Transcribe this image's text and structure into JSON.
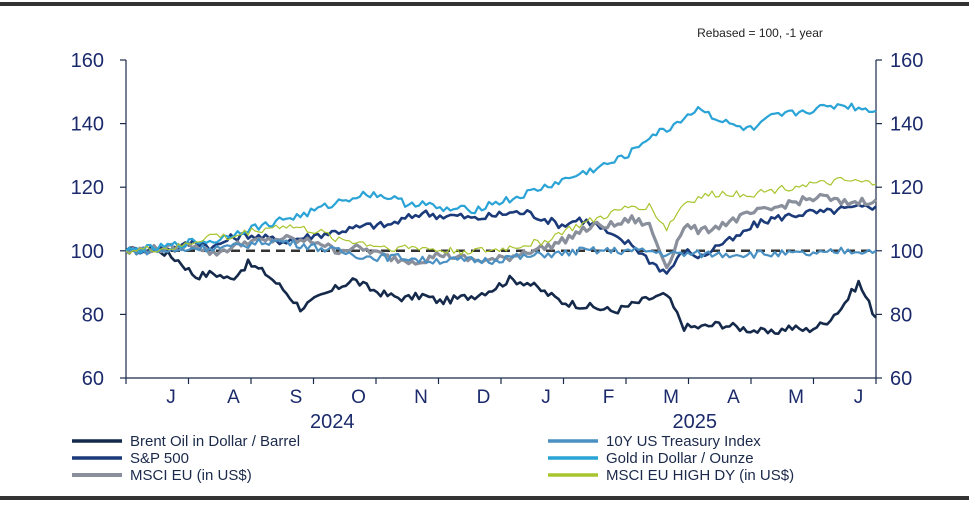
{
  "chart_data": {
    "type": "line",
    "note": "Rebased = 100,  -1 year",
    "y_ticks": [
      "60",
      "80",
      "100",
      "120",
      "140",
      "160"
    ],
    "ylim": [
      60,
      160
    ],
    "x_months": [
      "J",
      "A",
      "S",
      "O",
      "N",
      "D",
      "J",
      "F",
      "M",
      "A",
      "M",
      "J"
    ],
    "x_years": [
      {
        "label": "2024"
      },
      {
        "label": "2025"
      }
    ],
    "reference_line": 100,
    "series": [
      {
        "name": "Brent Oil in Dollar / Barrel",
        "color": "#15294b",
        "values": [
          [
            0,
            100
          ],
          [
            2,
            100
          ],
          [
            3,
            97
          ],
          [
            4,
            92
          ],
          [
            5,
            93
          ],
          [
            6,
            91
          ],
          [
            7,
            96
          ],
          [
            8,
            93
          ],
          [
            9,
            88
          ],
          [
            10,
            82
          ],
          [
            11,
            85
          ],
          [
            12,
            88
          ],
          [
            13,
            91
          ],
          [
            14,
            88
          ],
          [
            15,
            86
          ],
          [
            16,
            85
          ],
          [
            17,
            86
          ],
          [
            18,
            84
          ],
          [
            19,
            85
          ],
          [
            20,
            86
          ],
          [
            21,
            88
          ],
          [
            22,
            91
          ],
          [
            23,
            90
          ],
          [
            24,
            87
          ],
          [
            25,
            84
          ],
          [
            26,
            83
          ],
          [
            27,
            82
          ],
          [
            28,
            81
          ],
          [
            29,
            83
          ],
          [
            30,
            85
          ],
          [
            31,
            86
          ],
          [
            32,
            76
          ],
          [
            33,
            76
          ],
          [
            34,
            77
          ],
          [
            35,
            76
          ],
          [
            36,
            75
          ],
          [
            37,
            74
          ],
          [
            38,
            76
          ],
          [
            39,
            75
          ],
          [
            40,
            77
          ],
          [
            41,
            82
          ],
          [
            42,
            90
          ],
          [
            43,
            79
          ]
        ]
      },
      {
        "name": "S&P 500",
        "color": "#1b3a7a",
        "values": [
          [
            0,
            100
          ],
          [
            3,
            101
          ],
          [
            4,
            103
          ],
          [
            5,
            101
          ],
          [
            6,
            104
          ],
          [
            7,
            105
          ],
          [
            8,
            104
          ],
          [
            9,
            103
          ],
          [
            10,
            104
          ],
          [
            11,
            105
          ],
          [
            12,
            106
          ],
          [
            13,
            107
          ],
          [
            14,
            108
          ],
          [
            15,
            108
          ],
          [
            16,
            110
          ],
          [
            17,
            112
          ],
          [
            18,
            111
          ],
          [
            19,
            111
          ],
          [
            20,
            110
          ],
          [
            21,
            111
          ],
          [
            22,
            112
          ],
          [
            23,
            112
          ],
          [
            24,
            110
          ],
          [
            25,
            108
          ],
          [
            26,
            110
          ],
          [
            27,
            108
          ],
          [
            28,
            104
          ],
          [
            29,
            102
          ],
          [
            30,
            97
          ],
          [
            31,
            93
          ],
          [
            32,
            100
          ],
          [
            33,
            98
          ],
          [
            34,
            102
          ],
          [
            35,
            104
          ],
          [
            36,
            108
          ],
          [
            37,
            110
          ],
          [
            38,
            111
          ],
          [
            39,
            112
          ],
          [
            40,
            112
          ],
          [
            41,
            113
          ],
          [
            43,
            114
          ]
        ]
      },
      {
        "name": "MSCI EU (in US$)",
        "color": "#8a8f9c",
        "values": [
          [
            0,
            100
          ],
          [
            3,
            101
          ],
          [
            4,
            102
          ],
          [
            5,
            99
          ],
          [
            6,
            101
          ],
          [
            7,
            103
          ],
          [
            8,
            103
          ],
          [
            9,
            104
          ],
          [
            10,
            103
          ],
          [
            11,
            103
          ],
          [
            12,
            100
          ],
          [
            13,
            101
          ],
          [
            14,
            100
          ],
          [
            15,
            98
          ],
          [
            16,
            97
          ],
          [
            17,
            97
          ],
          [
            18,
            99
          ],
          [
            19,
            98
          ],
          [
            20,
            97
          ],
          [
            21,
            97
          ],
          [
            22,
            98
          ],
          [
            23,
            100
          ],
          [
            24,
            101
          ],
          [
            25,
            103
          ],
          [
            26,
            106
          ],
          [
            27,
            108
          ],
          [
            28,
            108
          ],
          [
            29,
            110
          ],
          [
            30,
            108
          ],
          [
            31,
            95
          ],
          [
            32,
            108
          ],
          [
            33,
            106
          ],
          [
            34,
            108
          ],
          [
            35,
            110
          ],
          [
            36,
            112
          ],
          [
            37,
            113
          ],
          [
            38,
            115
          ],
          [
            39,
            116
          ],
          [
            40,
            117
          ],
          [
            41,
            115
          ],
          [
            43,
            116
          ]
        ]
      },
      {
        "name": "10Y US Treasury Index",
        "color": "#4a90c2",
        "values": [
          [
            0,
            100
          ],
          [
            3,
            100
          ],
          [
            4,
            101
          ],
          [
            5,
            101
          ],
          [
            6,
            101
          ],
          [
            7,
            102
          ],
          [
            8,
            103
          ],
          [
            9,
            103
          ],
          [
            10,
            102
          ],
          [
            11,
            101
          ],
          [
            12,
            100
          ],
          [
            13,
            99
          ],
          [
            14,
            98
          ],
          [
            15,
            98
          ],
          [
            16,
            98
          ],
          [
            17,
            97
          ],
          [
            18,
            97
          ],
          [
            19,
            97
          ],
          [
            20,
            97
          ],
          [
            21,
            97
          ],
          [
            22,
            98
          ],
          [
            23,
            98
          ],
          [
            24,
            99
          ],
          [
            25,
            99
          ],
          [
            26,
            100
          ],
          [
            27,
            100
          ],
          [
            28,
            100
          ],
          [
            29,
            100
          ],
          [
            30,
            100
          ],
          [
            31,
            99
          ],
          [
            32,
            99
          ],
          [
            33,
            99
          ],
          [
            34,
            99
          ],
          [
            35,
            99
          ],
          [
            36,
            99
          ],
          [
            37,
            99
          ],
          [
            38,
            99
          ],
          [
            39,
            99
          ],
          [
            40,
            99
          ],
          [
            41,
            100
          ],
          [
            43,
            100
          ]
        ]
      },
      {
        "name": "Gold in Dollar / Ounze",
        "color": "#2aa3d6",
        "values": [
          [
            0,
            100
          ],
          [
            2,
            101
          ],
          [
            4,
            103
          ],
          [
            5,
            103
          ],
          [
            6,
            105
          ],
          [
            7,
            107
          ],
          [
            8,
            108
          ],
          [
            9,
            110
          ],
          [
            10,
            111
          ],
          [
            11,
            113
          ],
          [
            12,
            115
          ],
          [
            13,
            117
          ],
          [
            14,
            118
          ],
          [
            15,
            117
          ],
          [
            16,
            115
          ],
          [
            17,
            115
          ],
          [
            18,
            113
          ],
          [
            19,
            113
          ],
          [
            20,
            113
          ],
          [
            21,
            115
          ],
          [
            22,
            116
          ],
          [
            23,
            118
          ],
          [
            24,
            120
          ],
          [
            25,
            122
          ],
          [
            26,
            124
          ],
          [
            27,
            126
          ],
          [
            28,
            128
          ],
          [
            29,
            131
          ],
          [
            30,
            136
          ],
          [
            31,
            138
          ],
          [
            32,
            142
          ],
          [
            33,
            145
          ],
          [
            34,
            141
          ],
          [
            35,
            139
          ],
          [
            36,
            138
          ],
          [
            37,
            142
          ],
          [
            38,
            143
          ],
          [
            39,
            144
          ],
          [
            40,
            145
          ],
          [
            41,
            146
          ],
          [
            43,
            144
          ]
        ]
      },
      {
        "name": "MSCI EU HIGH DY (in US$)",
        "color": "#a8c52e",
        "values": [
          [
            0,
            100
          ],
          [
            3,
            101
          ],
          [
            4,
            103
          ],
          [
            5,
            105
          ],
          [
            6,
            104
          ],
          [
            7,
            106
          ],
          [
            8,
            107
          ],
          [
            9,
            108
          ],
          [
            10,
            107
          ],
          [
            11,
            106
          ],
          [
            12,
            104
          ],
          [
            13,
            103
          ],
          [
            14,
            102
          ],
          [
            15,
            101
          ],
          [
            16,
            101
          ],
          [
            17,
            101
          ],
          [
            18,
            100
          ],
          [
            19,
            100
          ],
          [
            20,
            100
          ],
          [
            21,
            100
          ],
          [
            22,
            101
          ],
          [
            23,
            102
          ],
          [
            24,
            103
          ],
          [
            25,
            106
          ],
          [
            26,
            108
          ],
          [
            27,
            110
          ],
          [
            28,
            112
          ],
          [
            29,
            114
          ],
          [
            30,
            114
          ],
          [
            31,
            107
          ],
          [
            32,
            115
          ],
          [
            33,
            117
          ],
          [
            34,
            118
          ],
          [
            35,
            118
          ],
          [
            36,
            118
          ],
          [
            37,
            119
          ],
          [
            38,
            120
          ],
          [
            39,
            121
          ],
          [
            40,
            121
          ],
          [
            41,
            122
          ],
          [
            43,
            121
          ]
        ]
      }
    ]
  }
}
